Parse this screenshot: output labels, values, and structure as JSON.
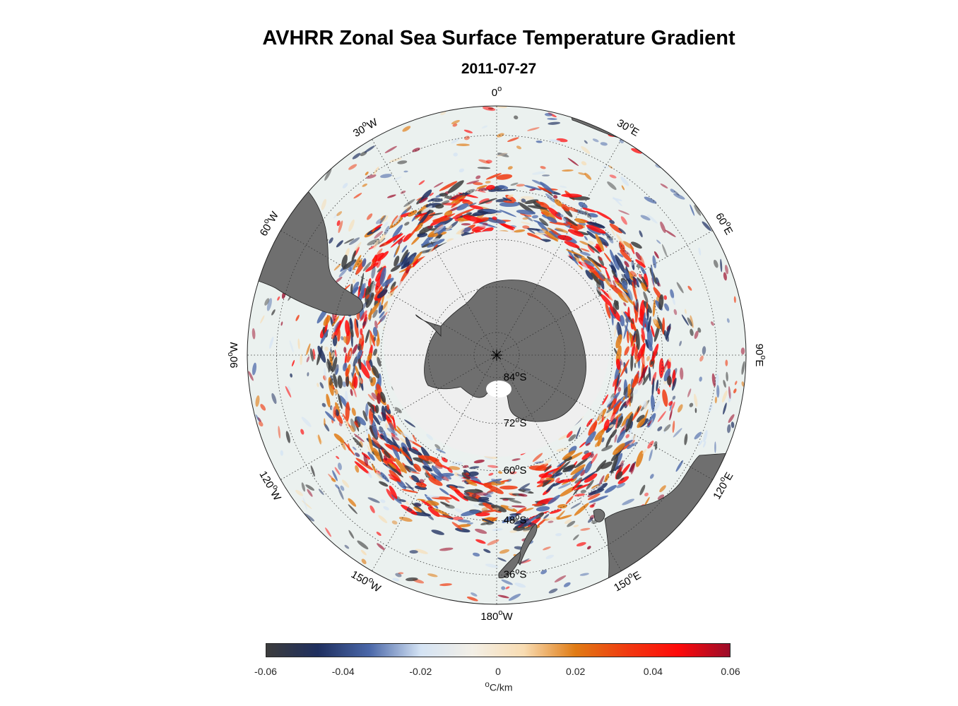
{
  "title": "AVHRR Zonal Sea Surface Temperature Gradient",
  "date": "2011-07-27",
  "map": {
    "projection": "south-polar-stereographic",
    "variable": "zonal SST gradient",
    "longitude_labels": [
      {
        "lon": 0,
        "text": "0",
        "sup": "o",
        "suffix": ""
      },
      {
        "lon": 30,
        "text": "30",
        "sup": "o",
        "suffix": "E"
      },
      {
        "lon": 60,
        "text": "60",
        "sup": "o",
        "suffix": "E"
      },
      {
        "lon": 90,
        "text": "90",
        "sup": "o",
        "suffix": "E"
      },
      {
        "lon": 120,
        "text": "120",
        "sup": "o",
        "suffix": "E"
      },
      {
        "lon": 150,
        "text": "150",
        "sup": "o",
        "suffix": "E"
      },
      {
        "lon": 180,
        "text": "180",
        "sup": "o",
        "suffix": "W"
      },
      {
        "lon": -150,
        "text": "150",
        "sup": "o",
        "suffix": "W"
      },
      {
        "lon": -120,
        "text": "120",
        "sup": "o",
        "suffix": "W"
      },
      {
        "lon": -90,
        "text": "90",
        "sup": "o",
        "suffix": "W"
      },
      {
        "lon": -60,
        "text": "60",
        "sup": "o",
        "suffix": "W"
      },
      {
        "lon": -30,
        "text": "30",
        "sup": "o",
        "suffix": "W"
      }
    ],
    "latitude_labels": [
      {
        "lat": -84,
        "text": "84",
        "sup": "o",
        "suffix": "S"
      },
      {
        "lat": -72,
        "text": "72",
        "sup": "o",
        "suffix": "S"
      },
      {
        "lat": -60,
        "text": "60",
        "sup": "o",
        "suffix": "S"
      },
      {
        "lat": -48,
        "text": "48",
        "sup": "o",
        "suffix": "S"
      },
      {
        "lat": -36,
        "text": "36",
        "sup": "o",
        "suffix": "S"
      }
    ],
    "colors": {
      "land": "#6f6f6f",
      "sea_ice": "#efefef",
      "ocean_neutral": "#ebf1ef",
      "grid": "#333333"
    }
  },
  "colorbar": {
    "min": -0.06,
    "max": 0.06,
    "ticks": [
      "-0.06",
      "-0.04",
      "-0.02",
      "0",
      "0.02",
      "0.04",
      "0.06"
    ],
    "unit_sup": "o",
    "unit": "C/km",
    "stops": [
      "#3c3c3c",
      "#1f2f5f",
      "#4a67a8",
      "#d4e3f4",
      "#f3efe6",
      "#f8dcb2",
      "#e07b14",
      "#f03a10",
      "#fe0a0a",
      "#9b0c2a"
    ]
  }
}
